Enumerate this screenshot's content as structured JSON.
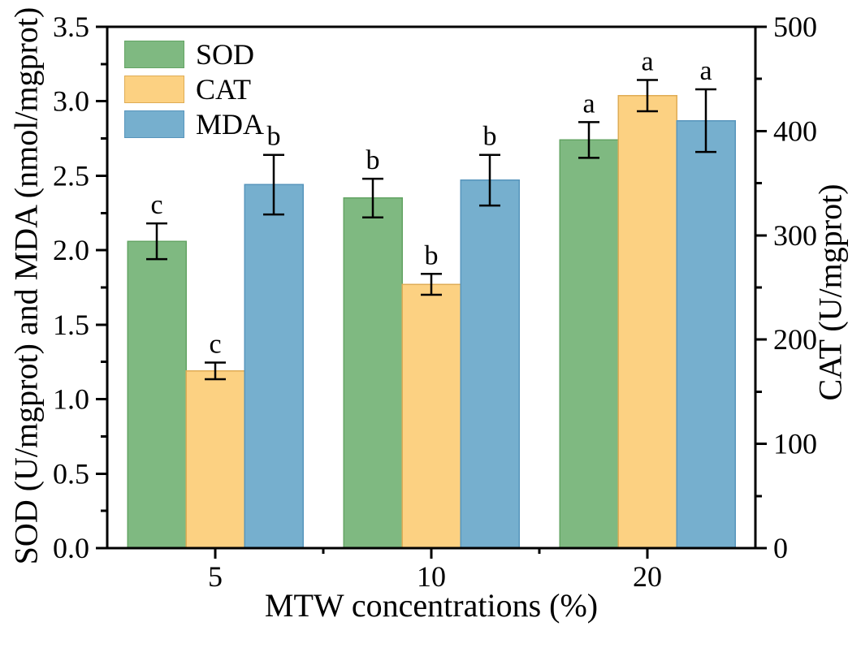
{
  "figure": {
    "background": "#ffffff",
    "text_color": "#000000",
    "axis_color": "#000000"
  },
  "chart_data": {
    "type": "bar",
    "title": "",
    "xlabel": "MTW concentrations (%)",
    "ylabel_left": "SOD (U/mgprot) and MDA (nmol/mgprot)",
    "ylabel_right": "CAT (U/mgprot)",
    "categories": [
      "5",
      "10",
      "20"
    ],
    "series": [
      {
        "name": "SOD",
        "axis": "left",
        "color": "#7FB981",
        "edge": "#63A463",
        "values": [
          2.06,
          2.35,
          2.74
        ],
        "errors": [
          0.12,
          0.13,
          0.12
        ],
        "letters": [
          "c",
          "b",
          "a"
        ]
      },
      {
        "name": "CAT",
        "axis": "right",
        "color": "#FCD182",
        "edge": "#DFAC55",
        "values": [
          170,
          253,
          434
        ],
        "errors": [
          8,
          10,
          15
        ],
        "letters": [
          "c",
          "b",
          "a"
        ]
      },
      {
        "name": "MDA",
        "axis": "left",
        "color": "#76AFCE",
        "edge": "#5795BC",
        "values": [
          2.44,
          2.47,
          2.87
        ],
        "errors": [
          0.2,
          0.17,
          0.21
        ],
        "letters": [
          "b",
          "b",
          "a"
        ]
      }
    ],
    "left_axis": {
      "min": 0,
      "max": 3.5,
      "major_step": 0.5,
      "minor_step": 0.25,
      "tick_labels": [
        "0.0",
        "0.5",
        "1.0",
        "1.5",
        "2.0",
        "2.5",
        "3.0",
        "3.5"
      ]
    },
    "right_axis": {
      "min": 0,
      "max": 500,
      "major_step": 100,
      "minor_step": 50,
      "tick_labels": [
        "0",
        "100",
        "200",
        "300",
        "400",
        "500"
      ]
    },
    "legend_position": "top-left-inside",
    "grid": false
  }
}
